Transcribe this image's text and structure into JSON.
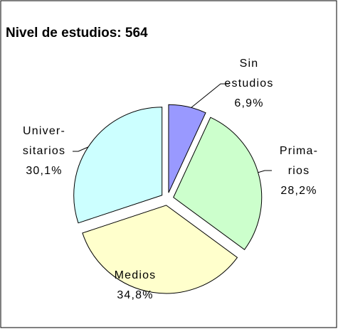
{
  "chart_data": {
    "type": "pie",
    "title": "Nivel de estudios: 564",
    "categories": [
      [
        "Sin",
        "estudios"
      ],
      [
        "Prima-",
        "rios"
      ],
      [
        "Medios"
      ],
      [
        "Univer-",
        "sitarios"
      ]
    ],
    "values": [
      6.9,
      28.2,
      34.8,
      30.1
    ],
    "value_labels": [
      "6,9%",
      "28,2%",
      "34,8%",
      "30,1%"
    ],
    "colors": [
      "#9999ff",
      "#ccffcc",
      "#ffffcc",
      "#ccffff"
    ]
  }
}
